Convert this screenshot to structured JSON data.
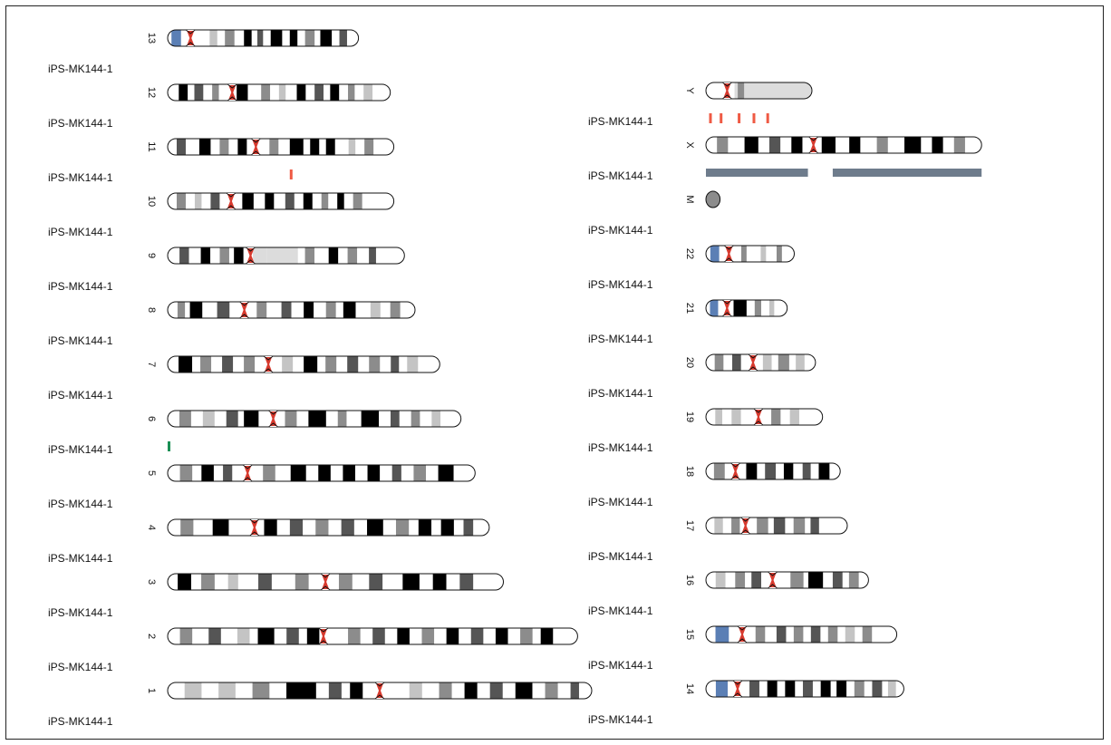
{
  "colors": {
    "centromere": "#d83a2e",
    "acen_blue": "#5b7fb5",
    "gpos100": "#000000",
    "gpos75": "#555555",
    "gpos50": "#8c8c8c",
    "gpos25": "#c4c4c4",
    "gneg": "#ffffff",
    "gvar": "#dcdcdc",
    "outline": "#111111",
    "track_red": "#ef5a44",
    "track_green": "#1a8f55",
    "track_slate": "#6e7c8c"
  },
  "sample_name": "iPS-MK144-1",
  "chromosomes": [
    {
      "id": "13",
      "column": "left",
      "length": 0.54,
      "centro": 0.12,
      "p_blue": true,
      "bands": [
        [
          0.02,
          0.07,
          "acen_blue"
        ],
        [
          0.22,
          0.26,
          "gpos25"
        ],
        [
          0.3,
          0.35,
          "gpos50"
        ],
        [
          0.4,
          0.44,
          "gpos100"
        ],
        [
          0.47,
          0.5,
          "gpos75"
        ],
        [
          0.54,
          0.6,
          "gpos100"
        ],
        [
          0.64,
          0.68,
          "gpos100"
        ],
        [
          0.72,
          0.77,
          "gpos50"
        ],
        [
          0.8,
          0.86,
          "gpos100"
        ],
        [
          0.9,
          0.94,
          "gpos75"
        ]
      ]
    },
    {
      "id": "12",
      "column": "left",
      "length": 0.63,
      "centro": 0.29,
      "bands": [
        [
          0.05,
          0.09,
          "gpos100"
        ],
        [
          0.12,
          0.16,
          "gpos75"
        ],
        [
          0.2,
          0.23,
          "gpos50"
        ],
        [
          0.31,
          0.36,
          "gpos100"
        ],
        [
          0.42,
          0.46,
          "gpos50"
        ],
        [
          0.5,
          0.53,
          "gpos25"
        ],
        [
          0.58,
          0.62,
          "gpos100"
        ],
        [
          0.66,
          0.7,
          "gpos75"
        ],
        [
          0.73,
          0.77,
          "gpos100"
        ],
        [
          0.81,
          0.84,
          "gpos50"
        ],
        [
          0.88,
          0.92,
          "gpos25"
        ]
      ]
    },
    {
      "id": "11",
      "column": "left",
      "length": 0.64,
      "centro": 0.39,
      "bands": [
        [
          0.04,
          0.08,
          "gpos75"
        ],
        [
          0.14,
          0.19,
          "gpos100"
        ],
        [
          0.23,
          0.27,
          "gpos50"
        ],
        [
          0.31,
          0.35,
          "gpos100"
        ],
        [
          0.45,
          0.49,
          "gpos50"
        ],
        [
          0.54,
          0.6,
          "gpos100"
        ],
        [
          0.63,
          0.67,
          "gpos100"
        ],
        [
          0.7,
          0.74,
          "gpos100"
        ],
        [
          0.8,
          0.83,
          "gpos25"
        ],
        [
          0.87,
          0.91,
          "gpos50"
        ]
      ]
    },
    {
      "id": "10",
      "column": "left",
      "length": 0.64,
      "centro": 0.28,
      "bands": [
        [
          0.04,
          0.08,
          "gpos50"
        ],
        [
          0.12,
          0.15,
          "gpos25"
        ],
        [
          0.19,
          0.23,
          "gpos75"
        ],
        [
          0.33,
          0.38,
          "gpos100"
        ],
        [
          0.43,
          0.47,
          "gpos100"
        ],
        [
          0.52,
          0.56,
          "gpos75"
        ],
        [
          0.6,
          0.64,
          "gpos100"
        ],
        [
          0.68,
          0.71,
          "gpos50"
        ],
        [
          0.75,
          0.78,
          "gpos100"
        ],
        [
          0.82,
          0.86,
          "gpos50"
        ]
      ]
    },
    {
      "id": "9",
      "column": "left",
      "length": 0.67,
      "centro": 0.35,
      "bands": [
        [
          0.05,
          0.09,
          "gpos75"
        ],
        [
          0.14,
          0.18,
          "gpos100"
        ],
        [
          0.22,
          0.26,
          "gpos50"
        ],
        [
          0.28,
          0.32,
          "gpos100"
        ],
        [
          0.36,
          0.42,
          "gvar"
        ],
        [
          0.42,
          0.55,
          "gvar"
        ],
        [
          0.58,
          0.62,
          "gpos50"
        ],
        [
          0.68,
          0.72,
          "gpos100"
        ],
        [
          0.76,
          0.8,
          "gpos50"
        ],
        [
          0.85,
          0.88,
          "gpos75"
        ]
      ]
    },
    {
      "id": "8",
      "column": "left",
      "length": 0.7,
      "centro": 0.31,
      "bands": [
        [
          0.04,
          0.07,
          "gpos50"
        ],
        [
          0.09,
          0.14,
          "gpos100"
        ],
        [
          0.2,
          0.25,
          "gpos75"
        ],
        [
          0.36,
          0.4,
          "gpos50"
        ],
        [
          0.46,
          0.5,
          "gpos75"
        ],
        [
          0.55,
          0.59,
          "gpos100"
        ],
        [
          0.64,
          0.68,
          "gpos50"
        ],
        [
          0.71,
          0.76,
          "gpos100"
        ],
        [
          0.82,
          0.86,
          "gpos25"
        ],
        [
          0.9,
          0.94,
          "gpos50"
        ]
      ]
    },
    {
      "id": "7",
      "column": "left",
      "length": 0.77,
      "centro": 0.37,
      "bands": [
        [
          0.04,
          0.09,
          "gpos100"
        ],
        [
          0.12,
          0.16,
          "gpos50"
        ],
        [
          0.2,
          0.24,
          "gpos75"
        ],
        [
          0.28,
          0.32,
          "gpos50"
        ],
        [
          0.42,
          0.46,
          "gpos25"
        ],
        [
          0.5,
          0.55,
          "gpos100"
        ],
        [
          0.58,
          0.62,
          "gpos50"
        ],
        [
          0.66,
          0.7,
          "gpos75"
        ],
        [
          0.74,
          0.78,
          "gpos50"
        ],
        [
          0.82,
          0.85,
          "gpos75"
        ],
        [
          0.88,
          0.92,
          "gpos25"
        ]
      ]
    },
    {
      "id": "6",
      "column": "left",
      "length": 0.83,
      "centro": 0.36,
      "bands": [
        [
          0.04,
          0.08,
          "gpos50"
        ],
        [
          0.12,
          0.16,
          "gpos25"
        ],
        [
          0.2,
          0.24,
          "gpos75"
        ],
        [
          0.26,
          0.31,
          "gpos100"
        ],
        [
          0.4,
          0.44,
          "gpos50"
        ],
        [
          0.48,
          0.54,
          "gpos100"
        ],
        [
          0.58,
          0.61,
          "gpos50"
        ],
        [
          0.66,
          0.72,
          "gpos100"
        ],
        [
          0.76,
          0.79,
          "gpos75"
        ],
        [
          0.83,
          0.86,
          "gpos50"
        ],
        [
          0.9,
          0.93,
          "gpos25"
        ]
      ]
    },
    {
      "id": "5",
      "column": "left",
      "length": 0.87,
      "centro": 0.26,
      "bands": [
        [
          0.04,
          0.08,
          "gpos50"
        ],
        [
          0.11,
          0.15,
          "gpos100"
        ],
        [
          0.18,
          0.21,
          "gpos75"
        ],
        [
          0.31,
          0.35,
          "gpos50"
        ],
        [
          0.4,
          0.45,
          "gpos100"
        ],
        [
          0.49,
          0.53,
          "gpos100"
        ],
        [
          0.57,
          0.61,
          "gpos100"
        ],
        [
          0.65,
          0.69,
          "gpos100"
        ],
        [
          0.73,
          0.76,
          "gpos75"
        ],
        [
          0.8,
          0.84,
          "gpos50"
        ],
        [
          0.88,
          0.93,
          "gpos100"
        ]
      ]
    },
    {
      "id": "4",
      "column": "left",
      "length": 0.91,
      "centro": 0.27,
      "bands": [
        [
          0.04,
          0.08,
          "gpos50"
        ],
        [
          0.14,
          0.19,
          "gpos100"
        ],
        [
          0.3,
          0.34,
          "gpos100"
        ],
        [
          0.38,
          0.42,
          "gpos75"
        ],
        [
          0.46,
          0.5,
          "gpos50"
        ],
        [
          0.54,
          0.58,
          "gpos75"
        ],
        [
          0.62,
          0.67,
          "gpos100"
        ],
        [
          0.71,
          0.75,
          "gpos50"
        ],
        [
          0.78,
          0.82,
          "gpos100"
        ],
        [
          0.85,
          0.89,
          "gpos100"
        ],
        [
          0.92,
          0.95,
          "gpos75"
        ]
      ]
    },
    {
      "id": "3",
      "column": "left",
      "length": 0.95,
      "centro": 0.47,
      "bands": [
        [
          0.03,
          0.07,
          "gpos100"
        ],
        [
          0.1,
          0.14,
          "gpos50"
        ],
        [
          0.18,
          0.21,
          "gpos25"
        ],
        [
          0.27,
          0.31,
          "gpos75"
        ],
        [
          0.38,
          0.42,
          "gpos50"
        ],
        [
          0.51,
          0.55,
          "gpos50"
        ],
        [
          0.6,
          0.64,
          "gpos75"
        ],
        [
          0.7,
          0.75,
          "gpos100"
        ],
        [
          0.79,
          0.83,
          "gpos100"
        ],
        [
          0.87,
          0.91,
          "gpos75"
        ]
      ]
    },
    {
      "id": "2",
      "column": "left",
      "length": 1.16,
      "centro": 0.38,
      "bands": [
        [
          0.03,
          0.06,
          "gpos50"
        ],
        [
          0.1,
          0.13,
          "gpos75"
        ],
        [
          0.17,
          0.2,
          "gpos25"
        ],
        [
          0.22,
          0.26,
          "gpos100"
        ],
        [
          0.29,
          0.32,
          "gpos75"
        ],
        [
          0.34,
          0.37,
          "gpos100"
        ],
        [
          0.44,
          0.47,
          "gpos50"
        ],
        [
          0.5,
          0.53,
          "gpos75"
        ],
        [
          0.56,
          0.59,
          "gpos100"
        ],
        [
          0.62,
          0.65,
          "gpos50"
        ],
        [
          0.68,
          0.71,
          "gpos100"
        ],
        [
          0.74,
          0.77,
          "gpos75"
        ],
        [
          0.8,
          0.83,
          "gpos100"
        ],
        [
          0.86,
          0.89,
          "gpos50"
        ],
        [
          0.91,
          0.94,
          "gpos100"
        ]
      ]
    },
    {
      "id": "1",
      "column": "left",
      "length": 1.2,
      "centro": 0.5,
      "bands": [
        [
          0.04,
          0.08,
          "gpos25"
        ],
        [
          0.12,
          0.16,
          "gpos25"
        ],
        [
          0.2,
          0.24,
          "gpos50"
        ],
        [
          0.28,
          0.35,
          "gpos100"
        ],
        [
          0.38,
          0.41,
          "gpos75"
        ],
        [
          0.43,
          0.46,
          "gpos100"
        ],
        [
          0.57,
          0.6,
          "gpos25"
        ],
        [
          0.64,
          0.67,
          "gpos50"
        ],
        [
          0.7,
          0.73,
          "gpos100"
        ],
        [
          0.76,
          0.79,
          "gpos75"
        ],
        [
          0.82,
          0.86,
          "gpos100"
        ],
        [
          0.89,
          0.92,
          "gpos50"
        ],
        [
          0.95,
          0.97,
          "gpos75"
        ]
      ]
    },
    {
      "id": "Y",
      "column": "right",
      "length": 0.3,
      "centro": 0.2,
      "bands": [
        [
          0.27,
          1.0,
          "gvar"
        ],
        [
          0.3,
          0.36,
          "gpos50"
        ]
      ]
    },
    {
      "id": "X",
      "column": "right",
      "length": 0.78,
      "centro": 0.39,
      "bands": [
        [
          0.04,
          0.08,
          "gpos50"
        ],
        [
          0.14,
          0.19,
          "gpos100"
        ],
        [
          0.23,
          0.27,
          "gpos75"
        ],
        [
          0.31,
          0.35,
          "gpos100"
        ],
        [
          0.42,
          0.47,
          "gpos100"
        ],
        [
          0.52,
          0.56,
          "gpos100"
        ],
        [
          0.62,
          0.66,
          "gpos50"
        ],
        [
          0.72,
          0.78,
          "gpos100"
        ],
        [
          0.82,
          0.86,
          "gpos100"
        ],
        [
          0.9,
          0.94,
          "gpos50"
        ]
      ]
    },
    {
      "id": "M",
      "column": "right",
      "length": 0.04,
      "centro": -1,
      "bands": [
        [
          0.0,
          1.0,
          "gpos50"
        ]
      ]
    },
    {
      "id": "22",
      "column": "right",
      "length": 0.25,
      "centro": 0.26,
      "p_blue": true,
      "bands": [
        [
          0.05,
          0.15,
          "acen_blue"
        ],
        [
          0.4,
          0.46,
          "gpos50"
        ],
        [
          0.62,
          0.68,
          "gpos25"
        ],
        [
          0.8,
          0.86,
          "gpos50"
        ]
      ]
    },
    {
      "id": "21",
      "column": "right",
      "length": 0.23,
      "centro": 0.26,
      "p_blue": true,
      "bands": [
        [
          0.05,
          0.15,
          "acen_blue"
        ],
        [
          0.34,
          0.5,
          "gpos100"
        ],
        [
          0.6,
          0.68,
          "gpos50"
        ],
        [
          0.78,
          0.84,
          "gpos25"
        ]
      ]
    },
    {
      "id": "20",
      "column": "right",
      "length": 0.31,
      "centro": 0.43,
      "bands": [
        [
          0.08,
          0.16,
          "gpos50"
        ],
        [
          0.24,
          0.32,
          "gpos75"
        ],
        [
          0.52,
          0.6,
          "gpos25"
        ],
        [
          0.66,
          0.76,
          "gpos50"
        ],
        [
          0.82,
          0.9,
          "gpos25"
        ]
      ]
    },
    {
      "id": "19",
      "column": "right",
      "length": 0.33,
      "centro": 0.45,
      "bands": [
        [
          0.08,
          0.14,
          "gpos25"
        ],
        [
          0.22,
          0.3,
          "gpos25"
        ],
        [
          0.56,
          0.64,
          "gpos50"
        ],
        [
          0.72,
          0.8,
          "gpos25"
        ]
      ]
    },
    {
      "id": "18",
      "column": "right",
      "length": 0.38,
      "centro": 0.22,
      "bands": [
        [
          0.06,
          0.14,
          "gpos50"
        ],
        [
          0.3,
          0.38,
          "gpos100"
        ],
        [
          0.44,
          0.52,
          "gpos75"
        ],
        [
          0.58,
          0.65,
          "gpos100"
        ],
        [
          0.72,
          0.78,
          "gpos75"
        ],
        [
          0.84,
          0.92,
          "gpos100"
        ]
      ]
    },
    {
      "id": "17",
      "column": "right",
      "length": 0.4,
      "centro": 0.28,
      "bands": [
        [
          0.06,
          0.12,
          "gpos25"
        ],
        [
          0.18,
          0.24,
          "gpos50"
        ],
        [
          0.36,
          0.44,
          "gpos50"
        ],
        [
          0.48,
          0.56,
          "gpos75"
        ],
        [
          0.62,
          0.7,
          "gpos50"
        ],
        [
          0.74,
          0.8,
          "gpos75"
        ]
      ]
    },
    {
      "id": "16",
      "column": "right",
      "length": 0.46,
      "centro": 0.41,
      "bands": [
        [
          0.06,
          0.12,
          "gpos25"
        ],
        [
          0.18,
          0.24,
          "gpos50"
        ],
        [
          0.28,
          0.34,
          "gpos75"
        ],
        [
          0.52,
          0.6,
          "gpos50"
        ],
        [
          0.63,
          0.72,
          "gpos100"
        ],
        [
          0.78,
          0.84,
          "gpos75"
        ],
        [
          0.88,
          0.94,
          "gpos50"
        ]
      ]
    },
    {
      "id": "15",
      "column": "right",
      "length": 0.54,
      "centro": 0.19,
      "p_blue": true,
      "bands": [
        [
          0.05,
          0.12,
          "acen_blue"
        ],
        [
          0.26,
          0.31,
          "gpos50"
        ],
        [
          0.37,
          0.42,
          "gpos75"
        ],
        [
          0.46,
          0.51,
          "gpos50"
        ],
        [
          0.55,
          0.6,
          "gpos75"
        ],
        [
          0.64,
          0.69,
          "gpos50"
        ],
        [
          0.73,
          0.78,
          "gpos25"
        ],
        [
          0.82,
          0.87,
          "gpos50"
        ]
      ]
    },
    {
      "id": "14",
      "column": "right",
      "length": 0.56,
      "centro": 0.16,
      "p_blue": true,
      "bands": [
        [
          0.05,
          0.11,
          "acen_blue"
        ],
        [
          0.22,
          0.27,
          "gpos75"
        ],
        [
          0.31,
          0.36,
          "gpos100"
        ],
        [
          0.4,
          0.45,
          "gpos100"
        ],
        [
          0.49,
          0.54,
          "gpos75"
        ],
        [
          0.58,
          0.63,
          "gpos100"
        ],
        [
          0.66,
          0.71,
          "gpos100"
        ],
        [
          0.75,
          0.8,
          "gpos50"
        ],
        [
          0.84,
          0.89,
          "gpos75"
        ],
        [
          0.92,
          0.96,
          "gpos25"
        ]
      ]
    }
  ],
  "tracks": [
    {
      "chrom": "11",
      "kind": "tick",
      "color": "track_red",
      "positions": [
        0.54
      ]
    },
    {
      "chrom": "6",
      "kind": "tick",
      "color": "track_green",
      "positions": [
        0.0
      ]
    },
    {
      "chrom": "Y",
      "kind": "ticks",
      "color": "track_red",
      "positions": [
        0.03,
        0.13,
        0.3,
        0.44,
        0.57
      ]
    },
    {
      "chrom": "X",
      "kind": "segments",
      "color": "track_slate",
      "segments": [
        [
          0.0,
          0.37
        ],
        [
          0.46,
          1.0
        ]
      ]
    }
  ]
}
